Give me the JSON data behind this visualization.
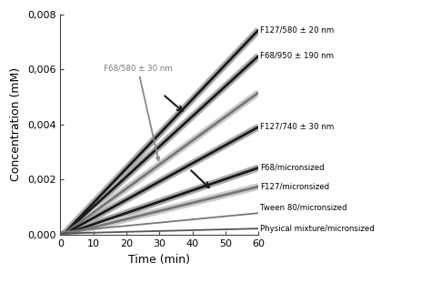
{
  "title": "",
  "xlabel": "Time (min)",
  "ylabel": "Concentration (mM)",
  "xlim": [
    0,
    60
  ],
  "ylim": [
    0,
    0.008
  ],
  "yticks": [
    0.0,
    0.002,
    0.004,
    0.006,
    0.008
  ],
  "ytick_labels": [
    "0,000",
    "0,002",
    "0,004",
    "0,006",
    "0,008"
  ],
  "xticks": [
    0,
    10,
    20,
    30,
    40,
    50,
    60
  ],
  "background_color": "#ffffff",
  "lines": [
    {
      "label": "F127/580 ± 20 nm",
      "slope": 0.0001255,
      "intercept": -0.0001,
      "color": "#1a1a1a",
      "linewidth": 2.0,
      "has_band": true,
      "band_color": "#aaaaaa",
      "band_lw": 5.5
    },
    {
      "label": "F68/950 ± 190 nm",
      "slope": 0.0001095,
      "intercept": -8e-05,
      "color": "#1a1a1a",
      "linewidth": 2.0,
      "has_band": true,
      "band_color": "#aaaaaa",
      "band_lw": 5.5
    },
    {
      "label": "F68/580 ± 30 nm",
      "slope": 8.7e-05,
      "intercept": -6e-05,
      "color": "#777777",
      "linewidth": 2.0,
      "has_band": true,
      "band_color": "#cccccc",
      "band_lw": 5.5
    },
    {
      "label": "F127/740 ± 30 nm",
      "slope": 6.6e-05,
      "intercept": -4.5e-05,
      "color": "#1a1a1a",
      "linewidth": 2.0,
      "has_band": true,
      "band_color": "#aaaaaa",
      "band_lw": 5.5
    },
    {
      "label": "F68/micronsized",
      "slope": 4.1e-05,
      "intercept": -2.5e-05,
      "color": "#1a1a1a",
      "linewidth": 2.0,
      "has_band": true,
      "band_color": "#aaaaaa",
      "band_lw": 5.5
    },
    {
      "label": "F127/micronsized",
      "slope": 2.95e-05,
      "intercept": -1.8e-05,
      "color": "#777777",
      "linewidth": 2.0,
      "has_band": true,
      "band_color": "#cccccc",
      "band_lw": 5.5
    },
    {
      "label": "Tween 80/micronsized",
      "slope": 1.15e-05,
      "intercept": 0.0001,
      "color": "#777777",
      "linewidth": 1.3,
      "has_band": false,
      "band_color": "#cccccc",
      "band_lw": 0
    },
    {
      "label": "Physical mixture/micronsized",
      "slope": 3e-06,
      "intercept": 5e-05,
      "color": "#555555",
      "linewidth": 1.3,
      "has_band": false,
      "band_color": "#cccccc",
      "band_lw": 0
    }
  ],
  "fontsize_labels": 6.2,
  "fontsize_axis": 8.0,
  "fontsize_axislabel": 9.0
}
